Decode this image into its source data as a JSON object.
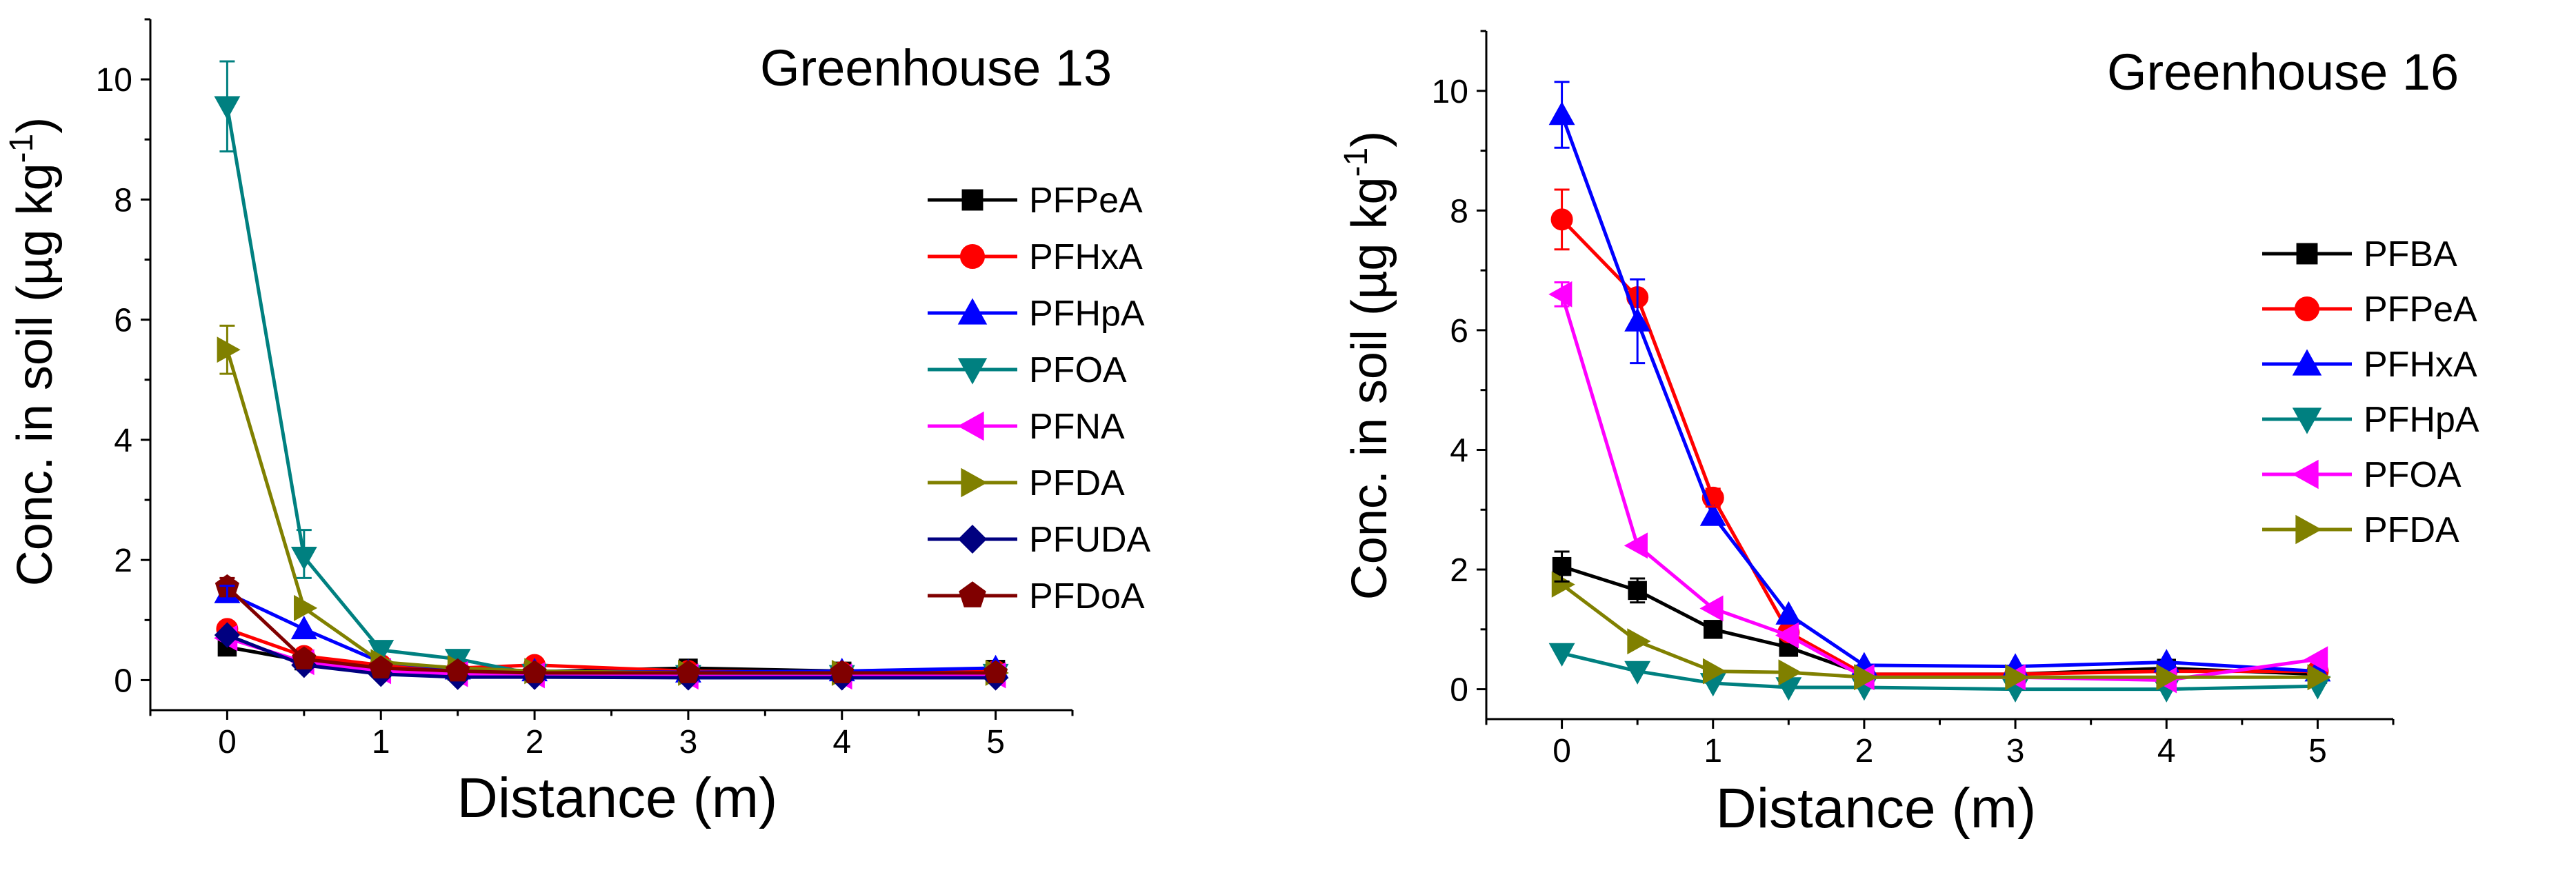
{
  "chart_data": [
    {
      "type": "line",
      "title": "Greenhouse 13",
      "xlabel": "Distance (m)",
      "ylabel": {
        "main": "Conc. in soil (µg kg",
        "sup": "-1",
        "close": ")"
      },
      "xlim": [
        -0.5,
        5.5
      ],
      "ylim": [
        -0.5,
        11
      ],
      "xticks": [
        0,
        1,
        2,
        3,
        4,
        5
      ],
      "yticks": [
        0,
        2,
        4,
        6,
        8,
        10
      ],
      "grid": false,
      "legend": "right",
      "x": [
        0,
        0.5,
        1,
        1.5,
        2,
        3,
        4,
        5
      ],
      "series": [
        {
          "name": "PFPeA",
          "color": "#000000",
          "marker": "square",
          "values": [
            0.55,
            0.32,
            0.2,
            0.15,
            0.14,
            0.2,
            0.15,
            0.18
          ]
        },
        {
          "name": "PFHxA",
          "color": "#ff0000",
          "marker": "circle",
          "values": [
            0.85,
            0.4,
            0.25,
            0.2,
            0.25,
            0.15,
            0.13,
            0.15
          ]
        },
        {
          "name": "PFHpA",
          "color": "#0000ff",
          "marker": "triangle-up",
          "values": [
            1.45,
            0.85,
            0.3,
            0.18,
            0.15,
            0.13,
            0.15,
            0.2
          ]
        },
        {
          "name": "PFOA",
          "color": "#008080",
          "marker": "triangle-down",
          "values": [
            9.55,
            2.05,
            0.5,
            0.35,
            0.1,
            0.08,
            0.08,
            0.1
          ]
        },
        {
          "name": "PFNA",
          "color": "#ff00ff",
          "marker": "triangle-left",
          "values": [
            0.7,
            0.3,
            0.15,
            0.1,
            0.08,
            0.06,
            0.06,
            0.08
          ]
        },
        {
          "name": "PFDA",
          "color": "#808000",
          "marker": "triangle-right",
          "values": [
            5.5,
            1.2,
            0.3,
            0.2,
            0.15,
            0.12,
            0.12,
            0.12
          ]
        },
        {
          "name": "PFUDA",
          "color": "#000080",
          "marker": "diamond",
          "values": [
            0.75,
            0.25,
            0.1,
            0.05,
            0.05,
            0.04,
            0.04,
            0.04
          ]
        },
        {
          "name": "PFDoA",
          "color": "#800000",
          "marker": "pentagon",
          "values": [
            1.55,
            0.35,
            0.2,
            0.15,
            0.12,
            0.12,
            0.12,
            0.12
          ]
        }
      ],
      "error_bars": [
        {
          "series": "PFOA",
          "index": 0,
          "plus": 0.75,
          "minus": 0.75
        },
        {
          "series": "PFOA",
          "index": 1,
          "plus": 0.45,
          "minus": 0.35
        },
        {
          "series": "PFDA",
          "index": 0,
          "plus": 0.4,
          "minus": 0.4
        },
        {
          "series": "PFDoA",
          "index": 0,
          "plus": 0.15,
          "minus": 0.15
        },
        {
          "series": "PFHpA",
          "index": 0,
          "plus": 0.12,
          "minus": 0.12
        }
      ]
    },
    {
      "type": "line",
      "title": "Greenhouse 16",
      "xlabel": "Distance (m)",
      "ylabel": {
        "main": "Conc. in soil (µg kg",
        "sup": "-1",
        "close": ")"
      },
      "xlim": [
        -0.5,
        5.5
      ],
      "ylim": [
        -0.5,
        11
      ],
      "xticks": [
        0,
        1,
        2,
        3,
        4,
        5
      ],
      "yticks": [
        0,
        2,
        4,
        6,
        8,
        10
      ],
      "grid": false,
      "legend": "right",
      "x": [
        0,
        0.5,
        1,
        1.5,
        2,
        3,
        4,
        5
      ],
      "series": [
        {
          "name": "PFBA",
          "color": "#000000",
          "marker": "square",
          "values": [
            2.05,
            1.65,
            1.0,
            0.7,
            0.25,
            0.25,
            0.35,
            0.25
          ]
        },
        {
          "name": "PFPeA",
          "color": "#ff0000",
          "marker": "circle",
          "values": [
            7.85,
            6.55,
            3.2,
            0.95,
            0.25,
            0.25,
            0.3,
            0.3
          ]
        },
        {
          "name": "PFHxA",
          "color": "#0000ff",
          "marker": "triangle-up",
          "values": [
            9.6,
            6.15,
            2.9,
            1.25,
            0.4,
            0.38,
            0.45,
            0.3
          ]
        },
        {
          "name": "PFHpA",
          "color": "#008080",
          "marker": "triangle-down",
          "values": [
            0.6,
            0.3,
            0.1,
            0.03,
            0.03,
            0.0,
            0.0,
            0.05
          ]
        },
        {
          "name": "PFOA",
          "color": "#ff00ff",
          "marker": "triangle-left",
          "values": [
            6.6,
            2.4,
            1.35,
            0.9,
            0.2,
            0.2,
            0.15,
            0.5
          ]
        },
        {
          "name": "PFDA",
          "color": "#808000",
          "marker": "triangle-right",
          "values": [
            1.75,
            0.8,
            0.3,
            0.28,
            0.2,
            0.2,
            0.2,
            0.2
          ]
        }
      ],
      "error_bars": [
        {
          "series": "PFHxA",
          "index": 0,
          "plus": 0.55,
          "minus": 0.55
        },
        {
          "series": "PFHxA",
          "index": 1,
          "plus": 0.7,
          "minus": 0.7
        },
        {
          "series": "PFPeA",
          "index": 0,
          "plus": 0.5,
          "minus": 0.5
        },
        {
          "series": "PFPeA",
          "index": 2,
          "plus": 0.15,
          "minus": 0.15
        },
        {
          "series": "PFOA",
          "index": 0,
          "plus": 0.2,
          "minus": 0.2
        },
        {
          "series": "PFBA",
          "index": 0,
          "plus": 0.25,
          "minus": 0.25
        },
        {
          "series": "PFBA",
          "index": 1,
          "plus": 0.2,
          "minus": 0.2
        }
      ]
    }
  ]
}
